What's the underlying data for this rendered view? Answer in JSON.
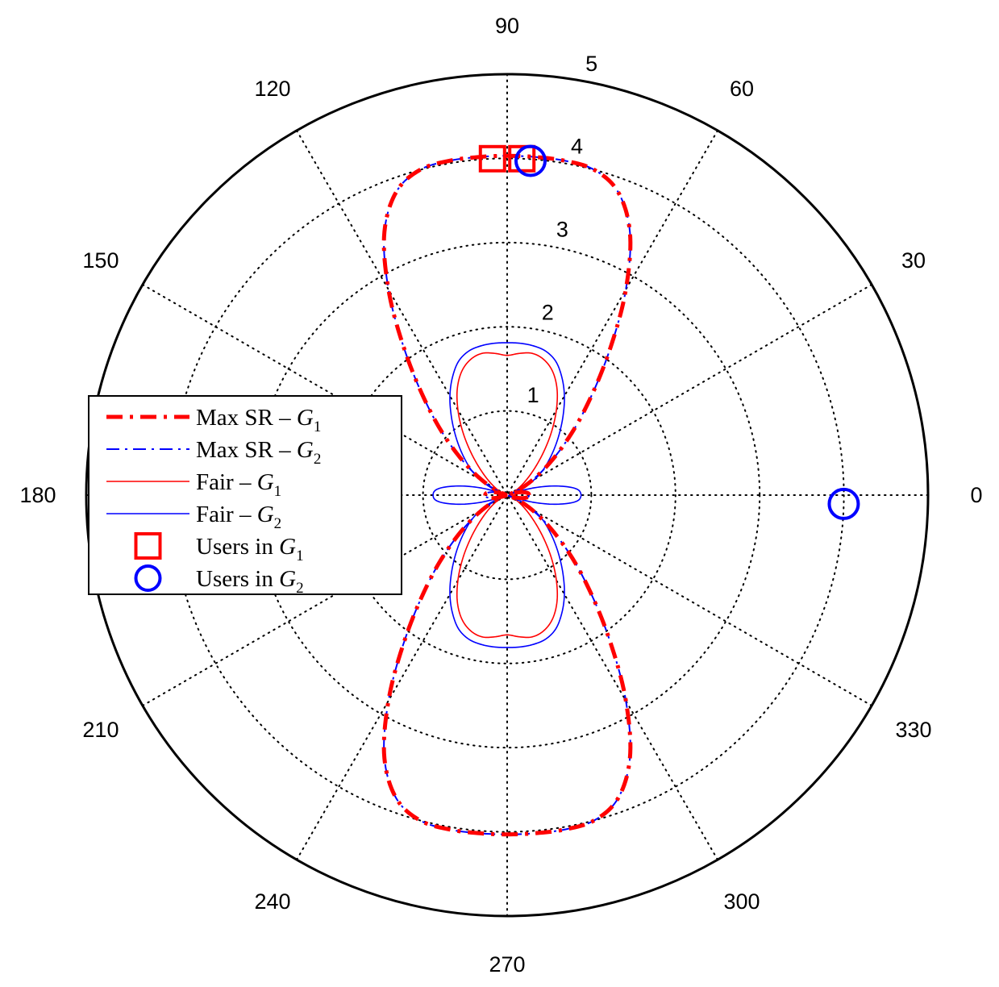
{
  "chart_data": {
    "type": "polar",
    "title": "",
    "rmax": 5,
    "grid": true,
    "radial_ticks": [
      "1",
      "2",
      "3",
      "4",
      "5"
    ],
    "angle_ticks": [
      "0",
      "30",
      "60",
      "90",
      "120",
      "150",
      "180",
      "210",
      "240",
      "270",
      "300",
      "330"
    ],
    "legend": {
      "position": "left",
      "entries": [
        {
          "key": "maxsr_g1",
          "prefix": "Max SR – ",
          "group": "G",
          "sub": "1"
        },
        {
          "key": "maxsr_g2",
          "prefix": "Max SR – ",
          "group": "G",
          "sub": "2"
        },
        {
          "key": "fair_g1",
          "prefix": "Fair – ",
          "group": "G",
          "sub": "1"
        },
        {
          "key": "fair_g2",
          "prefix": "Fair – ",
          "group": "G",
          "sub": "2"
        },
        {
          "key": "users_g1",
          "prefix": "Users in ",
          "group": "G",
          "sub": "1"
        },
        {
          "key": "users_g2",
          "prefix": "Users in ",
          "group": "G",
          "sub": "2"
        }
      ]
    },
    "series": [
      {
        "key": "maxsr_g1",
        "color": "#ff0000",
        "style": "dashdot-thick",
        "theta_deg": [
          0,
          5,
          10,
          15,
          20,
          25,
          30,
          35,
          40,
          45,
          50,
          55,
          60,
          65,
          70,
          75,
          80,
          85,
          90,
          95,
          100,
          105,
          110,
          115,
          120,
          125,
          130,
          135,
          140,
          145,
          150,
          155,
          160,
          165,
          170,
          175,
          180,
          185,
          190,
          195,
          200,
          205,
          210,
          215,
          220,
          225,
          230,
          235,
          240,
          245,
          250,
          255,
          260,
          265,
          270,
          275,
          280,
          285,
          290,
          295,
          300,
          305,
          310,
          315,
          320,
          325,
          330,
          335,
          340,
          345,
          350,
          355,
          360
        ],
        "r": [
          0.26,
          0.25,
          0.2,
          0.12,
          0.02,
          0.16,
          0.32,
          0.53,
          0.8,
          1.15,
          1.58,
          2.14,
          2.82,
          3.45,
          3.84,
          4.0,
          4.03,
          4.03,
          4.03,
          4.03,
          4.03,
          4.0,
          3.84,
          3.45,
          2.82,
          2.14,
          1.58,
          1.15,
          0.8,
          0.53,
          0.32,
          0.16,
          0.02,
          0.12,
          0.2,
          0.25,
          0.26,
          0.25,
          0.2,
          0.12,
          0.02,
          0.16,
          0.32,
          0.53,
          0.8,
          1.15,
          1.58,
          2.14,
          2.82,
          3.45,
          3.84,
          4.0,
          4.03,
          4.03,
          4.03,
          4.03,
          4.03,
          4.0,
          3.84,
          3.45,
          2.82,
          2.14,
          1.58,
          1.15,
          0.8,
          0.53,
          0.32,
          0.16,
          0.02,
          0.12,
          0.2,
          0.25,
          0.26
        ]
      },
      {
        "key": "maxsr_g2",
        "color": "#0000ff",
        "style": "dashdot-thin",
        "theta_deg": [
          0,
          5,
          10,
          15,
          20,
          25,
          30,
          35,
          40,
          45,
          50,
          55,
          60,
          65,
          70,
          75,
          80,
          85,
          90,
          95,
          100,
          105,
          110,
          115,
          120,
          125,
          130,
          135,
          140,
          145,
          150,
          155,
          160,
          165,
          170,
          175,
          180,
          185,
          190,
          195,
          200,
          205,
          210,
          215,
          220,
          225,
          230,
          235,
          240,
          245,
          250,
          255,
          260,
          265,
          270,
          275,
          280,
          285,
          290,
          295,
          300,
          305,
          310,
          315,
          320,
          325,
          330,
          335,
          340,
          345,
          350,
          355,
          360
        ],
        "r": [
          0.26,
          0.25,
          0.2,
          0.12,
          0.02,
          0.16,
          0.32,
          0.53,
          0.8,
          1.15,
          1.58,
          2.14,
          2.82,
          3.45,
          3.84,
          4.0,
          4.03,
          4.03,
          4.03,
          4.03,
          4.03,
          4.0,
          3.84,
          3.45,
          2.82,
          2.14,
          1.58,
          1.15,
          0.8,
          0.53,
          0.32,
          0.16,
          0.02,
          0.12,
          0.2,
          0.25,
          0.26,
          0.25,
          0.2,
          0.12,
          0.02,
          0.16,
          0.32,
          0.53,
          0.8,
          1.15,
          1.58,
          2.14,
          2.82,
          3.45,
          3.84,
          4.0,
          4.03,
          4.03,
          4.03,
          4.03,
          4.03,
          4.0,
          3.84,
          3.45,
          2.82,
          2.14,
          1.58,
          1.15,
          0.8,
          0.53,
          0.32,
          0.16,
          0.02,
          0.12,
          0.2,
          0.25,
          0.26
        ]
      },
      {
        "key": "fair_g1",
        "color": "#ff0000",
        "style": "solid-thin",
        "theta_deg": [
          0,
          5,
          10,
          15,
          20,
          25,
          30,
          35,
          40,
          45,
          50,
          55,
          60,
          65,
          70,
          75,
          80,
          85,
          90,
          95,
          100,
          105,
          110,
          115,
          120,
          125,
          130,
          135,
          140,
          145,
          150,
          155,
          160,
          165,
          170,
          175,
          180,
          185,
          190,
          195,
          200,
          205,
          210,
          215,
          220,
          225,
          230,
          235,
          240,
          245,
          250,
          255,
          260,
          265,
          270,
          275,
          280,
          285,
          290,
          295,
          300,
          305,
          310,
          315,
          320,
          325,
          330,
          335,
          340,
          345,
          350,
          355,
          360
        ],
        "r": [
          0.1,
          0.09,
          0.07,
          0.04,
          0.03,
          0.08,
          0.14,
          0.22,
          0.33,
          0.48,
          0.68,
          0.92,
          1.17,
          1.4,
          1.57,
          1.67,
          1.71,
          1.69,
          1.66,
          1.69,
          1.71,
          1.67,
          1.57,
          1.4,
          1.17,
          0.92,
          0.68,
          0.48,
          0.33,
          0.22,
          0.14,
          0.08,
          0.03,
          0.04,
          0.07,
          0.09,
          0.1,
          0.09,
          0.07,
          0.04,
          0.03,
          0.08,
          0.14,
          0.22,
          0.33,
          0.48,
          0.68,
          0.92,
          1.17,
          1.4,
          1.57,
          1.67,
          1.71,
          1.69,
          1.66,
          1.69,
          1.71,
          1.67,
          1.57,
          1.4,
          1.17,
          0.92,
          0.68,
          0.48,
          0.33,
          0.22,
          0.14,
          0.08,
          0.03,
          0.04,
          0.07,
          0.09,
          0.1
        ]
      },
      {
        "key": "fair_g2",
        "color": "#0000ff",
        "style": "solid-thin",
        "theta_deg": [
          0,
          5,
          10,
          15,
          20,
          25,
          30,
          35,
          40,
          45,
          50,
          55,
          60,
          65,
          70,
          75,
          80,
          85,
          90,
          95,
          100,
          105,
          110,
          115,
          120,
          125,
          130,
          135,
          140,
          145,
          150,
          155,
          160,
          165,
          170,
          175,
          180,
          185,
          190,
          195,
          200,
          205,
          210,
          215,
          220,
          225,
          230,
          235,
          240,
          245,
          250,
          255,
          260,
          265,
          270,
          275,
          280,
          285,
          290,
          295,
          300,
          305,
          310,
          315,
          320,
          325,
          330,
          335,
          340,
          345,
          350,
          355,
          360
        ],
        "r": [
          0.88,
          0.83,
          0.62,
          0.34,
          0.06,
          0.22,
          0.38,
          0.52,
          0.65,
          0.8,
          0.97,
          1.16,
          1.36,
          1.54,
          1.69,
          1.77,
          1.8,
          1.81,
          1.81,
          1.81,
          1.8,
          1.77,
          1.69,
          1.54,
          1.36,
          1.16,
          0.97,
          0.8,
          0.65,
          0.52,
          0.38,
          0.22,
          0.06,
          0.34,
          0.62,
          0.83,
          0.88,
          0.83,
          0.62,
          0.34,
          0.06,
          0.22,
          0.38,
          0.52,
          0.65,
          0.8,
          0.97,
          1.16,
          1.36,
          1.54,
          1.69,
          1.77,
          1.8,
          1.81,
          1.81,
          1.81,
          1.8,
          1.77,
          1.69,
          1.54,
          1.36,
          1.16,
          0.97,
          0.8,
          0.65,
          0.52,
          0.38,
          0.22,
          0.06,
          0.34,
          0.62,
          0.83,
          0.88
        ]
      }
    ],
    "users": [
      {
        "key": "users_g1",
        "color": "#ff0000",
        "marker": "square",
        "points": [
          {
            "theta_deg": 92.5,
            "r": 4.0
          },
          {
            "theta_deg": 87.5,
            "r": 4.0
          }
        ]
      },
      {
        "key": "users_g2",
        "color": "#0000ff",
        "marker": "circle",
        "points": [
          {
            "theta_deg": 86.0,
            "r": 3.98
          },
          {
            "theta_deg": 358.5,
            "r": 4.0
          }
        ]
      }
    ]
  }
}
